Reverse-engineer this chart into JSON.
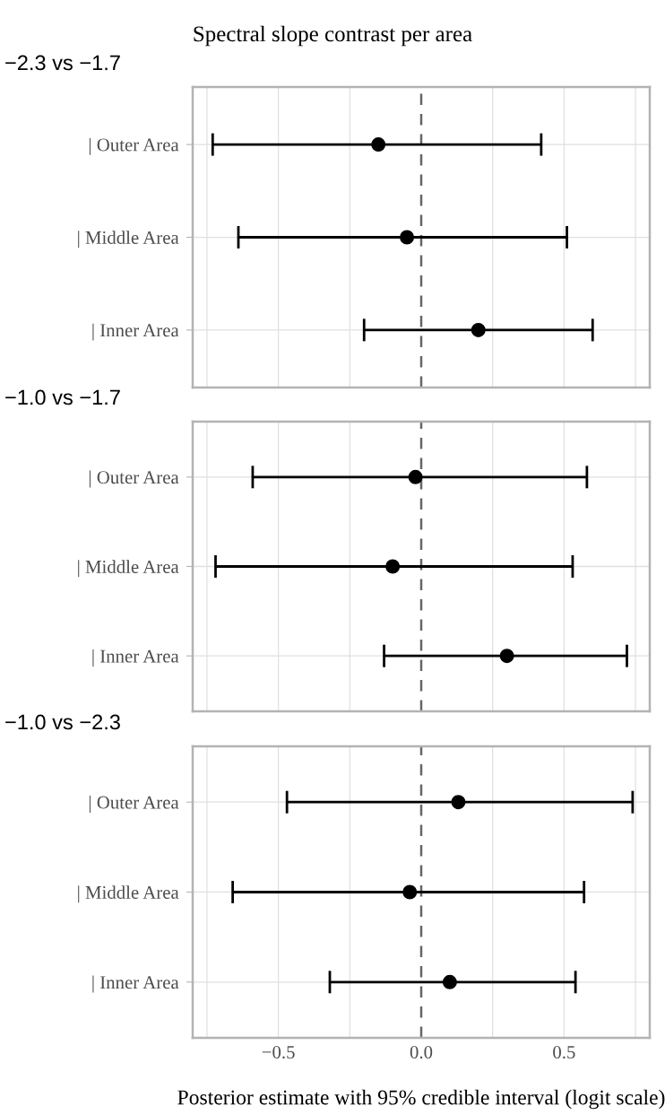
{
  "chart_data": [
    {
      "type": "scatter",
      "title": "Spectral slope contrast per area",
      "subtitle": "−2.3 vs −1.7",
      "orientation": "horizontal",
      "categories": [
        "| Outer Area",
        "| Middle Area",
        "| Inner Area"
      ],
      "color": "#000000",
      "values": [
        -0.15,
        -0.05,
        0.2
      ],
      "errors": [
        [
          -0.73,
          0.42
        ],
        [
          -0.64,
          0.51
        ],
        [
          -0.2,
          0.6
        ]
      ],
      "xlim": [
        -0.8,
        0.8
      ],
      "xticks": [
        {
          "value": -0.75,
          "label": null
        },
        -0.5,
        {
          "value": -0.25,
          "label": null
        },
        0.0,
        {
          "value": 0.25,
          "label": null
        },
        0.5,
        {
          "value": 0.75,
          "label": null
        }
      ],
      "ref_lines": [
        {
          "axis": "x",
          "value": 0,
          "color": "#666666",
          "line_style": "dashed"
        }
      ],
      "grid": true,
      "marker": "circle",
      "tick_labels": "y"
    },
    {
      "type": "scatter",
      "subtitle": "−1.0 vs −1.7",
      "orientation": "horizontal",
      "categories": [
        "| Outer Area",
        "| Middle Area",
        "| Inner Area"
      ],
      "color": "#000000",
      "values": [
        -0.02,
        -0.1,
        0.3
      ],
      "errors": [
        [
          -0.59,
          0.58
        ],
        [
          -0.72,
          0.53
        ],
        [
          -0.13,
          0.72
        ]
      ],
      "xlim": [
        -0.8,
        0.8
      ],
      "xticks": [
        {
          "value": -0.75,
          "label": null
        },
        -0.5,
        {
          "value": -0.25,
          "label": null
        },
        0.0,
        {
          "value": 0.25,
          "label": null
        },
        0.5,
        {
          "value": 0.75,
          "label": null
        }
      ],
      "ref_lines": [
        {
          "axis": "x",
          "value": 0,
          "color": "#666666",
          "line_style": "dashed"
        }
      ],
      "grid": true,
      "marker": "circle",
      "tick_labels": "y"
    },
    {
      "type": "scatter",
      "subtitle": "−1.0 vs −2.3",
      "xlabel": "Posterior estimate with 95% credible interval (logit scale)",
      "orientation": "horizontal",
      "categories": [
        "| Outer Area",
        "| Middle Area",
        "| Inner Area"
      ],
      "color": "#000000",
      "values": [
        0.13,
        -0.04,
        0.1
      ],
      "errors": [
        [
          -0.47,
          0.74
        ],
        [
          -0.66,
          0.57
        ],
        [
          -0.32,
          0.54
        ]
      ],
      "xlim": [
        -0.8,
        0.8
      ],
      "xticks": [
        {
          "value": -0.75,
          "label": null
        },
        {
          "value": -0.5,
          "label": "−0.5"
        },
        {
          "value": -0.25,
          "label": null
        },
        {
          "value": 0,
          "label": "0.0"
        },
        {
          "value": 0.25,
          "label": null
        },
        0.5,
        {
          "value": 0.75,
          "label": null
        }
      ],
      "ref_lines": [
        {
          "axis": "x",
          "value": 0,
          "color": "#666666",
          "line_style": "dashed"
        }
      ],
      "grid": true,
      "marker": "circle"
    }
  ]
}
